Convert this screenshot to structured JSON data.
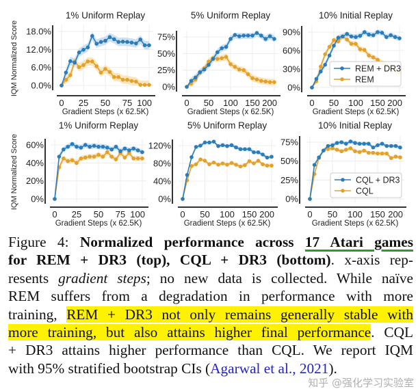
{
  "colors": {
    "dr3": "#2a7db8",
    "base": "#e3a02a",
    "dr3_band": "#b9d6ee",
    "base_band": "#f7deaa",
    "grid": "#ececec",
    "axis": "#333333"
  },
  "ylabel": "IQM Normalized Score",
  "xlabel": "Gradient Steps (x 62.5K)",
  "chart_data": [
    {
      "type": "line",
      "title": "1% Uniform Replay",
      "xlabel": "Gradient Steps (x 62.5K)",
      "ylabel": "IQM Normalized Score",
      "xlim": [
        0,
        100
      ],
      "ylim": [
        0,
        18
      ],
      "xticks": [
        0,
        25,
        50,
        75,
        100
      ],
      "yticks": [
        0,
        6,
        12,
        18
      ],
      "ytick_labels": [
        "0.0%",
        "6.0%",
        "12.0%",
        "18.0%"
      ],
      "x": [
        0,
        5,
        10,
        15,
        20,
        25,
        30,
        35,
        40,
        45,
        50,
        55,
        60,
        65,
        70,
        75,
        80,
        85,
        90,
        95,
        100
      ],
      "series": [
        {
          "values": [
            0,
            4.3,
            8.1,
            7.6,
            11,
            11.9,
            12.7,
            16.5,
            13.9,
            14.5,
            14.9,
            16.1,
            15.4,
            14.5,
            14.6,
            14.5,
            14.3,
            14,
            15.3,
            13.4,
            13.4
          ]
        },
        {
          "values": [
            0,
            1.9,
            3.4,
            8,
            6.1,
            6.8,
            8,
            8,
            6.4,
            4.3,
            5.5,
            4.5,
            2.8,
            2.8,
            1.9,
            1.9,
            1.5,
            1.3,
            0.2,
            0.2,
            0.2
          ]
        }
      ]
    },
    {
      "type": "line",
      "title": "5% Uniform Replay",
      "xlabel": "Gradient Steps (x 62.5K)",
      "xlim": [
        0,
        200
      ],
      "ylim": [
        0,
        75
      ],
      "xticks": [
        0,
        50,
        100,
        150,
        200
      ],
      "yticks": [
        0,
        25,
        50,
        75
      ],
      "ytick_labels": [
        "0%",
        "25%",
        "50%",
        "75%"
      ],
      "x": [
        0,
        10,
        20,
        30,
        40,
        50,
        60,
        70,
        80,
        90,
        100,
        110,
        120,
        130,
        140,
        150,
        160,
        170,
        180,
        190,
        200
      ],
      "series": [
        {
          "values": [
            0,
            9,
            14,
            22,
            26,
            33,
            42,
            52,
            58,
            60,
            72,
            78,
            76,
            77,
            77,
            77,
            81,
            77,
            72,
            76,
            72
          ]
        },
        {
          "values": [
            0,
            5,
            11,
            21,
            28,
            38,
            43,
            42,
            43,
            45,
            34,
            30,
            26,
            25,
            19,
            13,
            11,
            9,
            8,
            7,
            7
          ]
        }
      ]
    },
    {
      "type": "line",
      "title": "10% Initial Replay",
      "xlabel": "Gradient Steps (x 62.5K)",
      "xlim": [
        0,
        200
      ],
      "ylim": [
        0,
        90
      ],
      "xticks": [
        0,
        50,
        100,
        150,
        200
      ],
      "yticks": [
        0,
        30,
        60,
        90
      ],
      "ytick_labels": [
        "0%",
        "30%",
        "60%",
        "90%"
      ],
      "x": [
        0,
        10,
        20,
        30,
        40,
        50,
        60,
        70,
        80,
        90,
        100,
        110,
        120,
        130,
        140,
        150,
        160,
        170,
        180,
        190,
        200
      ],
      "legend": "bottom-right",
      "series": [
        {
          "name": "REM + DR3",
          "values": [
            0,
            14,
            26,
            37,
            52,
            68,
            81,
            83,
            87,
            83,
            82,
            84,
            90,
            86,
            85,
            90,
            89,
            82,
            85,
            82,
            80
          ]
        },
        {
          "name": "REM",
          "values": [
            0,
            10,
            34,
            54,
            66,
            77,
            75,
            83,
            78,
            71,
            71,
            62,
            61,
            52,
            49,
            45,
            40,
            36,
            32,
            28,
            24
          ]
        }
      ]
    },
    {
      "type": "line",
      "title": "1% Uniform Replay",
      "xlabel": "Gradient Steps (x 62.5K)",
      "ylabel": "IQM Normalized Score",
      "xlim": [
        0,
        100
      ],
      "ylim": [
        0,
        60
      ],
      "xticks": [
        0,
        25,
        50,
        75,
        100
      ],
      "yticks": [
        0,
        20,
        40,
        60
      ],
      "ytick_labels": [
        "0%",
        "20%",
        "40%",
        "60%"
      ],
      "x": [
        0,
        5,
        10,
        15,
        20,
        25,
        30,
        35,
        40,
        45,
        50,
        55,
        60,
        65,
        70,
        75,
        80,
        85,
        90,
        95,
        100
      ],
      "series": [
        {
          "values": [
            0,
            47,
            55,
            58,
            61,
            58,
            57,
            60,
            58,
            59,
            58,
            58,
            57,
            55,
            58,
            53,
            56,
            54,
            56,
            54,
            52
          ]
        },
        {
          "values": [
            0,
            35,
            45,
            42,
            43,
            40,
            45,
            46,
            47,
            47,
            49,
            47,
            52,
            47,
            44,
            51,
            46,
            51,
            45,
            45,
            45
          ]
        }
      ]
    },
    {
      "type": "line",
      "title": "5% Uniform Replay",
      "xlabel": "Gradient Steps (x 62.5K)",
      "xlim": [
        0,
        200
      ],
      "ylim": [
        0,
        120
      ],
      "xticks": [
        0,
        50,
        100,
        150,
        200
      ],
      "yticks": [
        0,
        40,
        80,
        120
      ],
      "ytick_labels": [
        "0%",
        "40%",
        "80%",
        "120%"
      ],
      "x": [
        0,
        10,
        20,
        30,
        40,
        50,
        60,
        70,
        80,
        90,
        100,
        110,
        120,
        130,
        140,
        150,
        160,
        170,
        180,
        190,
        200
      ],
      "series": [
        {
          "values": [
            0,
            54,
            94,
            117,
            120,
            127,
            127,
            129,
            119,
            121,
            119,
            121,
            116,
            112,
            112,
            112,
            105,
            105,
            100,
            93,
            95
          ]
        },
        {
          "values": [
            0,
            42,
            74,
            78,
            89,
            86,
            78,
            82,
            77,
            80,
            77,
            81,
            77,
            73,
            76,
            85,
            80,
            86,
            78,
            75,
            75
          ]
        }
      ]
    },
    {
      "type": "line",
      "title": "10% Initial Replay",
      "xlabel": "Gradient Steps (x 62.5K)",
      "xlim": [
        0,
        200
      ],
      "ylim": [
        0,
        75
      ],
      "xticks": [
        0,
        50,
        100,
        150,
        200
      ],
      "yticks": [
        0,
        25,
        50,
        75
      ],
      "ytick_labels": [
        "0%",
        "25%",
        "50%",
        "75%"
      ],
      "x": [
        0,
        10,
        20,
        30,
        40,
        50,
        60,
        70,
        80,
        90,
        100,
        110,
        120,
        130,
        140,
        150,
        160,
        170,
        180,
        190,
        200
      ],
      "legend": "bottom-right",
      "series": [
        {
          "name": "CQL + DR3",
          "values": [
            0,
            45,
            55,
            64,
            70,
            71,
            74,
            75,
            73,
            76,
            74,
            73,
            73,
            73,
            68,
            71,
            73,
            70,
            70,
            70,
            68
          ]
        },
        {
          "name": "CQL",
          "values": [
            0,
            33,
            54,
            64,
            66,
            67,
            65,
            63,
            65,
            67,
            63,
            62,
            64,
            61,
            61,
            60,
            60,
            60,
            54,
            56,
            55
          ]
        }
      ]
    }
  ],
  "caption": {
    "l1": {
      "a": "Figure 4: ",
      "b": "Normalized performance across ",
      "c": "17 Atari games"
    },
    "l2": {
      "a": "for REM + DR3 (top), CQL + DR3 (bottom)",
      "b": ".  x-axis rep-"
    },
    "l3": {
      "a": "resents ",
      "b": "gradient steps",
      "c": "; no new data is collected.  While naïve"
    },
    "l4": {
      "a": "REM suffers from a degradation in performance with more"
    },
    "l5": {
      "a": "training, ",
      "b": "REM + DR3 not only remains generally stable with"
    },
    "l6": {
      "a": "more training, but also attains higher final performance",
      "b": ". CQL"
    },
    "l7": {
      "a": "+ DR3 attains higher performance than CQL. We report IQM"
    },
    "l8": {
      "a": "with 95% stratified bootstrap CIs (",
      "b": "Agarwal et al., 2021",
      "c": ")."
    }
  },
  "watermark": "知乎 @强化学习实验室"
}
